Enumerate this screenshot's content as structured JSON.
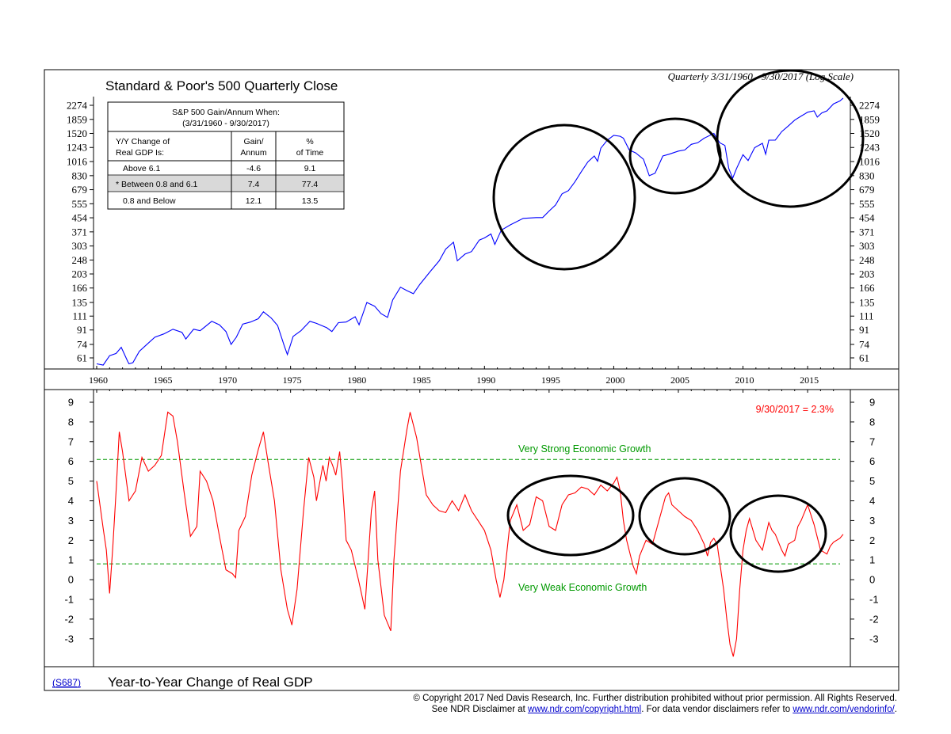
{
  "top_chart": {
    "title": "Standard & Poor's 500 Quarterly Close",
    "subtitle": "Quarterly 3/31/1960 - 9/30/2017 (Log Scale)",
    "y_ticks": [
      "2274",
      "1859",
      "1520",
      "1243",
      "1016",
      "830",
      "679",
      "555",
      "454",
      "371",
      "303",
      "248",
      "203",
      "166",
      "135",
      "111",
      "91",
      "74",
      "61"
    ],
    "x_ticks": [
      "1960",
      "1965",
      "1970",
      "1975",
      "1980",
      "1985",
      "1990",
      "1995",
      "2000",
      "2005",
      "2010",
      "2015"
    ],
    "table": {
      "title_line1": "S&P 500 Gain/Annum When:",
      "title_line2": "(3/31/1960 - 9/30/2017)",
      "col1_line1": "Y/Y Change of",
      "col1_line2": "Real GDP Is:",
      "col2_line1": "Gain/",
      "col2_line2": "Annum",
      "col3_line1": "%",
      "col3_line2": "of Time",
      "rows": [
        {
          "label": "Above 6.1",
          "gain": "-4.6",
          "pct": "9.1"
        },
        {
          "label": "* Between 0.8 and 6.1",
          "gain": "7.4",
          "pct": "77.4"
        },
        {
          "label": "0.8 and Below",
          "gain": "12.1",
          "pct": "13.5"
        }
      ]
    }
  },
  "bottom_chart": {
    "title": "Year-to-Year Change of Real GDP",
    "code": "(S687)",
    "latest": "9/30/2017 = 2.3%",
    "strong_label": "Very Strong Economic Growth",
    "weak_label": "Very Weak Economic Growth",
    "y_ticks": [
      "9",
      "8",
      "7",
      "6",
      "5",
      "4",
      "3",
      "2",
      "1",
      "0",
      "-1",
      "-2",
      "-3"
    ]
  },
  "footer": {
    "line1": "© Copyright 2017 Ned Davis Research, Inc.  Further distribution prohibited without prior permission.  All Rights Reserved.",
    "line2_a": "See NDR Disclaimer at ",
    "link1": "www.ndr.com/copyright.html",
    "line2_b": ". For data vendor disclaimers refer to ",
    "link2": "www.ndr.com/vendorinfo/",
    "line2_c": "."
  },
  "chart_data": [
    {
      "type": "line",
      "title": "Standard & Poor's 500 Quarterly Close",
      "scale": "log",
      "ylim": [
        55,
        2500
      ],
      "xlim": [
        1960,
        2018
      ],
      "line_color": "#0000ff",
      "series": [
        {
          "name": "S&P 500",
          "x": [
            1960.0,
            1960.5,
            1961.0,
            1961.5,
            1961.9,
            1962.4,
            1962.5,
            1962.8,
            1963.3,
            1963.8,
            1964.5,
            1965.2,
            1965.9,
            1966.6,
            1966.9,
            1967.5,
            1968.0,
            1968.9,
            1969.5,
            1970.0,
            1970.4,
            1970.8,
            1971.3,
            1971.9,
            1972.5,
            1972.9,
            1973.5,
            1974.0,
            1974.5,
            1974.75,
            1975.2,
            1975.8,
            1976.5,
            1977.0,
            1977.8,
            1978.2,
            1978.7,
            1979.3,
            1980.0,
            1980.3,
            1980.9,
            1981.5,
            1982.0,
            1982.5,
            1982.9,
            1983.5,
            1984.0,
            1984.5,
            1985.0,
            1985.8,
            1986.5,
            1987.0,
            1987.6,
            1987.9,
            1988.5,
            1989.0,
            1989.6,
            1990.0,
            1990.5,
            1990.8,
            1991.3,
            1992.0,
            1993.0,
            1994.0,
            1994.5,
            1995.0,
            1995.5,
            1996.0,
            1996.5,
            1997.0,
            1997.5,
            1998.0,
            1998.5,
            1998.75,
            1999.0,
            1999.5,
            2000.0,
            2000.5,
            2000.75,
            2001.2,
            2001.7,
            2002.3,
            2002.75,
            2003.2,
            2003.8,
            2004.3,
            2005.0,
            2005.5,
            2006.0,
            2006.5,
            2007.0,
            2007.75,
            2008.2,
            2008.6,
            2008.9,
            2009.2,
            2009.5,
            2010.0,
            2010.4,
            2010.9,
            2011.5,
            2011.75,
            2012.0,
            2012.5,
            2013.0,
            2013.5,
            2014.0,
            2014.5,
            2015.0,
            2015.5,
            2015.75,
            2016.1,
            2016.5,
            2017.0,
            2017.5,
            2017.75
          ],
          "values": [
            56,
            55,
            63,
            65,
            71,
            58,
            56,
            57,
            67,
            73,
            82,
            86,
            92,
            88,
            80,
            92,
            90,
            103,
            98,
            89,
            74,
            82,
            99,
            102,
            107,
            118,
            108,
            97,
            73,
            64,
            83,
            90,
            103,
            100,
            94,
            89,
            101,
            102,
            110,
            98,
            135,
            128,
            115,
            109,
            140,
            168,
            160,
            153,
            175,
            210,
            245,
            290,
            320,
            245,
            270,
            280,
            330,
            340,
            360,
            310,
            380,
            410,
            450,
            455,
            455,
            500,
            545,
            640,
            670,
            760,
            880,
            1010,
            1100,
            1020,
            1230,
            1380,
            1480,
            1460,
            1420,
            1200,
            1150,
            1050,
            830,
            860,
            1100,
            1130,
            1180,
            1200,
            1300,
            1330,
            1420,
            1520,
            1330,
            1280,
            920,
            800,
            920,
            1120,
            1030,
            1240,
            1320,
            1130,
            1380,
            1380,
            1560,
            1690,
            1840,
            1950,
            2060,
            2100,
            1920,
            2040,
            2100,
            2320,
            2420,
            2520
          ]
        }
      ]
    },
    {
      "type": "line",
      "title": "Year-to-Year Change of Real GDP",
      "ylim": [
        -3.6,
        9.2
      ],
      "xlim": [
        1960,
        2018
      ],
      "line_color": "#ff0000",
      "reference_lines": [
        {
          "label": "Very Strong Economic Growth",
          "y": 6.1,
          "color": "#009900"
        },
        {
          "label": "Very Weak Economic Growth",
          "y": 0.8,
          "color": "#009900"
        }
      ],
      "series": [
        {
          "name": "Real GDP Y/Y",
          "x": [
            1960.0,
            1960.5,
            1960.75,
            1961.0,
            1961.25,
            1961.5,
            1961.75,
            1962.0,
            1962.5,
            1963.0,
            1963.5,
            1964.0,
            1964.5,
            1965.0,
            1965.5,
            1965.9,
            1966.25,
            1966.75,
            1967.25,
            1967.75,
            1968.0,
            1968.5,
            1969.0,
            1969.5,
            1970.0,
            1970.5,
            1970.75,
            1971.0,
            1971.5,
            1972.0,
            1972.5,
            1972.9,
            1973.25,
            1973.75,
            1974.25,
            1974.75,
            1975.1,
            1975.5,
            1976.0,
            1976.4,
            1976.8,
            1977.0,
            1977.5,
            1977.75,
            1978.0,
            1978.25,
            1978.5,
            1978.8,
            1979.0,
            1979.3,
            1979.7,
            1980.25,
            1980.75,
            1981.0,
            1981.25,
            1981.5,
            1981.75,
            1982.25,
            1982.75,
            1983.0,
            1983.5,
            1984.0,
            1984.25,
            1984.75,
            1985.5,
            1986.0,
            1986.5,
            1987.0,
            1987.5,
            1988.0,
            1988.5,
            1989.0,
            1989.5,
            1990.0,
            1990.5,
            1990.9,
            1991.2,
            1991.5,
            1992.0,
            1992.5,
            1993.0,
            1993.5,
            1994.0,
            1994.5,
            1995.0,
            1995.5,
            1996.0,
            1996.5,
            1997.0,
            1997.5,
            1998.0,
            1998.5,
            1999.0,
            1999.5,
            2000.0,
            2000.25,
            2000.5,
            2000.75,
            2001.0,
            2001.5,
            2001.75,
            2002.0,
            2002.5,
            2003.0,
            2003.5,
            2004.0,
            2004.25,
            2004.5,
            2005.0,
            2005.5,
            2006.0,
            2006.5,
            2007.0,
            2007.25,
            2007.5,
            2007.75,
            2008.0,
            2008.5,
            2008.75,
            2009.0,
            2009.25,
            2009.5,
            2009.75,
            2010.0,
            2010.25,
            2010.5,
            2011.0,
            2011.5,
            2012.0,
            2012.25,
            2012.5,
            2013.0,
            2013.25,
            2013.5,
            2014.0,
            2014.25,
            2014.5,
            2015.0,
            2015.5,
            2016.0,
            2016.5,
            2016.75,
            2017.0,
            2017.5,
            2017.75
          ],
          "values": [
            5.0,
            2.6,
            1.5,
            -0.7,
            1.7,
            4.5,
            7.5,
            6.5,
            4.0,
            4.5,
            6.2,
            5.5,
            5.8,
            6.3,
            8.5,
            8.3,
            7.0,
            4.5,
            2.2,
            2.7,
            5.5,
            5.0,
            4.0,
            2.2,
            0.5,
            0.3,
            0.1,
            2.5,
            3.2,
            5.3,
            6.6,
            7.5,
            6.0,
            4.0,
            0.5,
            -1.5,
            -2.3,
            -0.5,
            3.5,
            6.2,
            5.2,
            4.0,
            5.8,
            5.0,
            6.2,
            5.8,
            5.3,
            6.5,
            5.0,
            2.0,
            1.5,
            0.0,
            -1.5,
            1.0,
            3.5,
            4.5,
            1.0,
            -1.8,
            -2.6,
            1.0,
            5.5,
            7.6,
            8.5,
            7.2,
            4.3,
            3.8,
            3.5,
            3.4,
            4.0,
            3.5,
            4.3,
            3.5,
            3.0,
            2.5,
            1.5,
            0.0,
            -0.9,
            0.0,
            3.0,
            3.8,
            2.5,
            2.8,
            4.2,
            4.0,
            2.7,
            2.5,
            3.8,
            4.3,
            4.4,
            4.7,
            4.6,
            4.3,
            4.8,
            4.5,
            4.9,
            5.2,
            4.5,
            3.0,
            2.0,
            0.7,
            0.3,
            1.2,
            2.0,
            1.8,
            3.0,
            4.2,
            4.4,
            3.8,
            3.5,
            3.2,
            3.0,
            2.5,
            1.8,
            1.2,
            1.9,
            2.1,
            1.8,
            -0.5,
            -2.0,
            -3.3,
            -3.9,
            -3.0,
            -0.5,
            1.5,
            2.5,
            3.1,
            2.0,
            1.5,
            2.9,
            2.5,
            2.3,
            1.5,
            1.2,
            1.8,
            2.0,
            2.7,
            3.0,
            3.8,
            2.8,
            1.5,
            1.3,
            1.7,
            1.9,
            2.1,
            2.3
          ]
        }
      ]
    }
  ]
}
